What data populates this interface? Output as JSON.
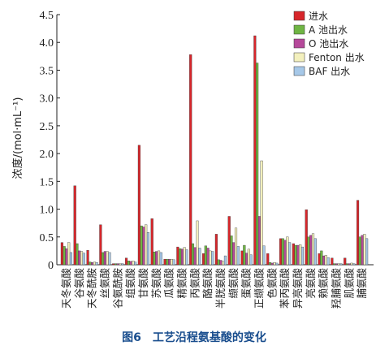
{
  "chart_data": {
    "type": "bar",
    "ylabel": "浓度/(mol·mL⁻¹)",
    "ylim": [
      0,
      4.5
    ],
    "yticks": [
      "0",
      "0.5",
      "1.0",
      "1.5",
      "2.0",
      "2.5",
      "3.0",
      "3.5",
      "4.0",
      "4.5"
    ],
    "legend_position": "top-right",
    "categories": [
      "天冬氨酸",
      "谷氨酸",
      "天冬酰胺",
      "丝氨酸",
      "谷氨酰胺",
      "组氨酸",
      "甘氨酸",
      "苏氨酸",
      "瓜氨酸",
      "精氨酸",
      "丙氨酸",
      "酪氨酸",
      "半胱氨酸",
      "缬氨酸",
      "蛋氨酸",
      "正缬氨酸",
      "色氨酸",
      "苯丙氨酸",
      "异亮氨酸",
      "亮氨酸",
      "赖氨酸",
      "羟脯氨酸",
      "肌氨酸",
      "脯氨酸"
    ],
    "series": [
      {
        "name": "进水",
        "color": "#d7262b",
        "values": [
          0.4,
          1.42,
          0.26,
          0.72,
          0.02,
          0.12,
          2.15,
          0.83,
          0.1,
          0.32,
          3.78,
          0.2,
          0.55,
          0.87,
          0.25,
          4.12,
          0.2,
          0.47,
          0.38,
          0.99,
          0.2,
          0.12,
          0.12,
          1.16
        ]
      },
      {
        "name": "A 池出水",
        "color": "#6fb544",
        "values": [
          0.33,
          0.38,
          0.05,
          0.22,
          0.02,
          0.07,
          0.7,
          0.23,
          0.1,
          0.29,
          0.38,
          0.34,
          0.09,
          0.52,
          0.35,
          3.63,
          0.04,
          0.47,
          0.35,
          0.5,
          0.25,
          0.02,
          0.02,
          0.5
        ]
      },
      {
        "name": "O 池出水",
        "color": "#b5499a",
        "values": [
          0.29,
          0.25,
          0.04,
          0.24,
          0.02,
          0.06,
          0.68,
          0.24,
          0.1,
          0.28,
          0.31,
          0.3,
          0.08,
          0.4,
          0.21,
          0.87,
          0.03,
          0.44,
          0.35,
          0.53,
          0.16,
          0.02,
          0.02,
          0.53
        ]
      },
      {
        "name": "Fenton 出水",
        "color": "#f3f0bd",
        "values": [
          0.4,
          0.24,
          0.05,
          0.24,
          0.02,
          0.07,
          0.72,
          0.25,
          0.1,
          0.31,
          0.79,
          0.25,
          0.06,
          0.66,
          0.28,
          1.87,
          0.04,
          0.5,
          0.36,
          0.56,
          0.17,
          0.02,
          0.03,
          0.55
        ]
      },
      {
        "name": "BAF 出水",
        "color": "#a6c8e8",
        "values": [
          0.22,
          0.21,
          0.04,
          0.22,
          0.02,
          0.05,
          0.58,
          0.22,
          0.09,
          0.27,
          0.3,
          0.24,
          0.16,
          0.33,
          0.18,
          0.34,
          0.03,
          0.4,
          0.32,
          0.47,
          0.13,
          0.02,
          0.02,
          0.47
        ]
      }
    ]
  },
  "caption": "图6　工艺沿程氨基酸的变化"
}
